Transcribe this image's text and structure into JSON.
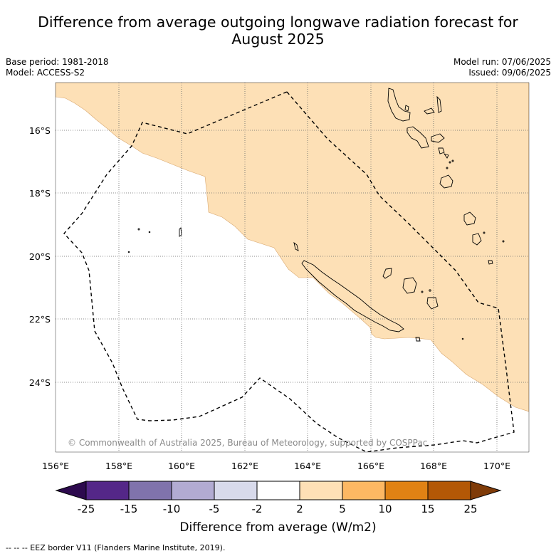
{
  "title": {
    "line1": "Difference from average outgoing longwave radiation forecast for",
    "line2": "August 2025"
  },
  "meta": {
    "base_period": "Base period: 1981-2018",
    "model": "Model: ACCESS-S2",
    "model_run": "Model run: 07/06/2025",
    "issued": "Issued: 09/06/2025"
  },
  "map": {
    "lat_ticks": [
      "16°S",
      "18°S",
      "20°S",
      "22°S",
      "24°S"
    ],
    "lon_ticks": [
      "156°E",
      "158°E",
      "160°E",
      "162°E",
      "164°E",
      "166°E",
      "168°E",
      "170°E"
    ],
    "copyright": "© Commonwealth of Australia 2025, Bureau of Meteorology, supported by COSPPac",
    "anomaly_fill_color": "#fde0b6",
    "anomaly_category": "2 to 5",
    "eez_line_style": "dashed"
  },
  "colorbar": {
    "labels": [
      "-25",
      "-15",
      "-10",
      "-5",
      "-2",
      "2",
      "5",
      "10",
      "15",
      "25"
    ],
    "colors": [
      "#2d0a4e",
      "#542788",
      "#8073ac",
      "#b2abd2",
      "#d8daeb",
      "#ffffff",
      "#fee0b6",
      "#fdb863",
      "#e08214",
      "#b35806",
      "#7f3b08"
    ],
    "title": "Difference from average (W/m2)"
  },
  "footer": {
    "eez_legend": "--  --  -- EEZ border V11 (Flanders Marine Institute, 2019)."
  }
}
